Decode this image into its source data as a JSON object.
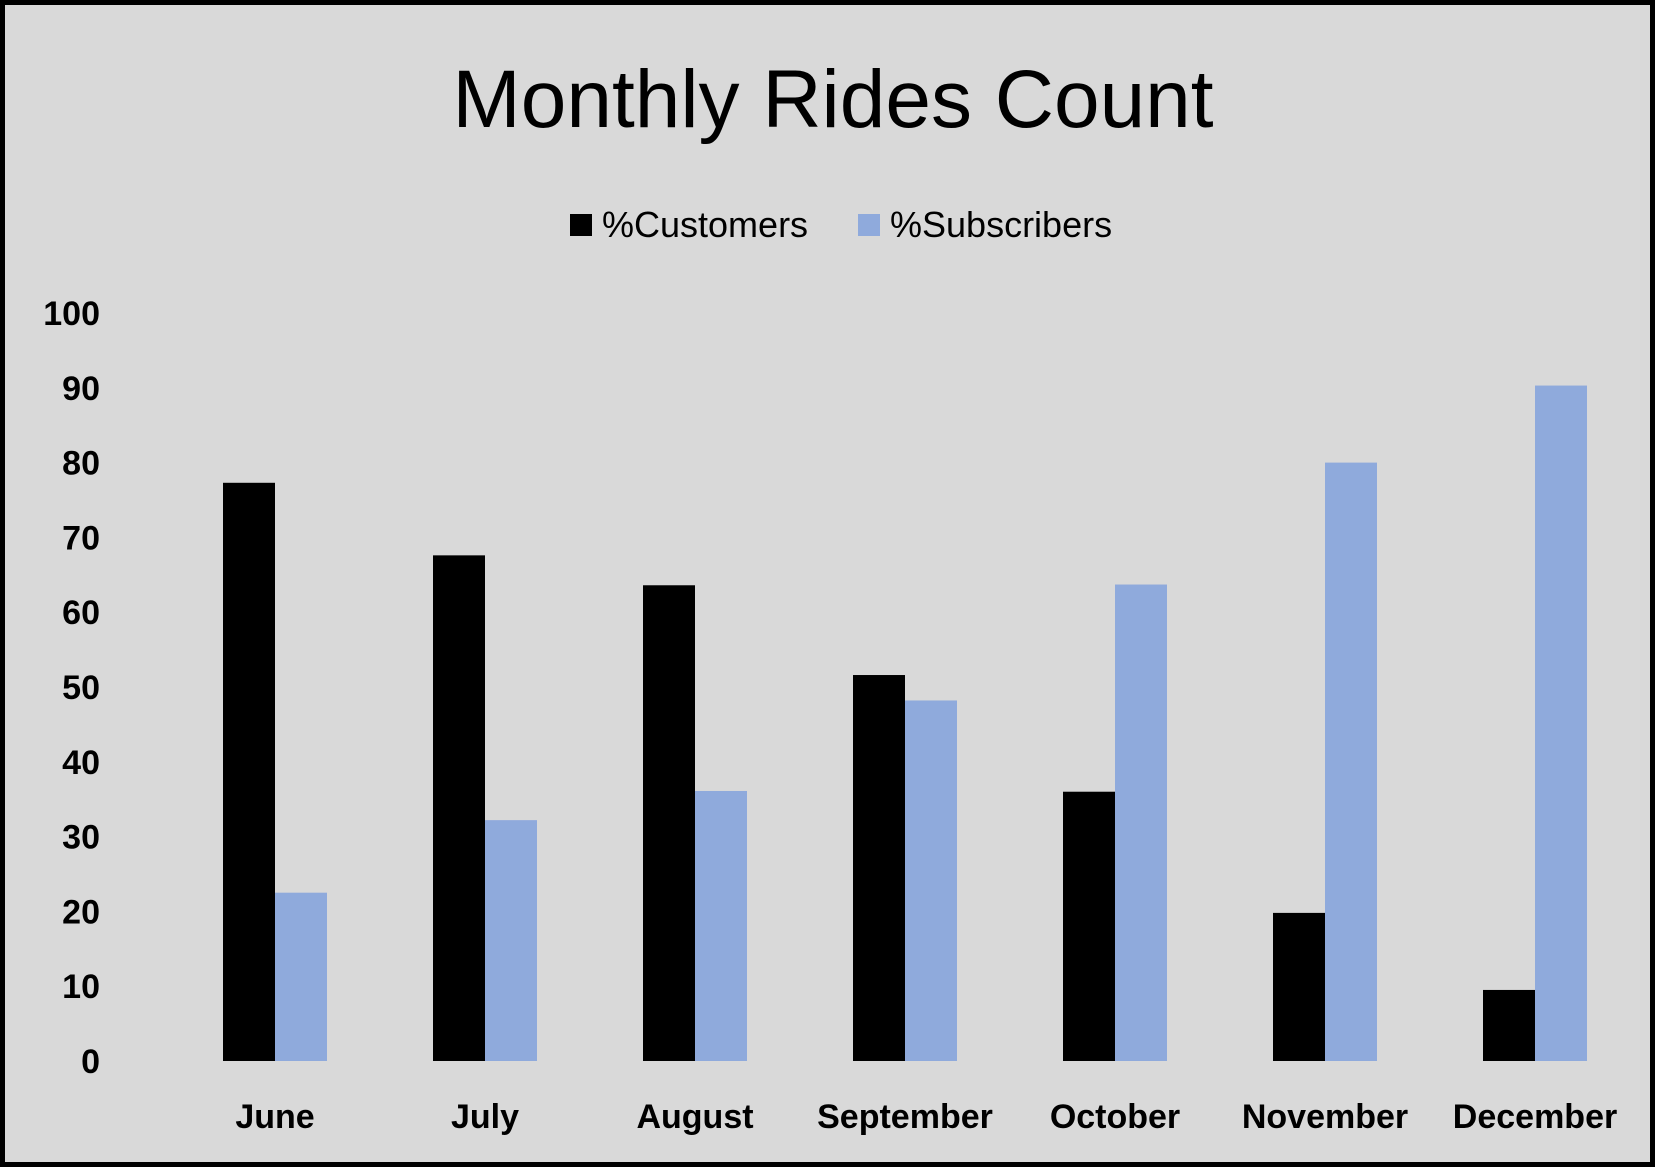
{
  "chart_data": {
    "type": "bar",
    "title": "Monthly Rides Count",
    "categories": [
      "June",
      "July",
      "August",
      "September",
      "October",
      "November",
      "December"
    ],
    "series": [
      {
        "name": "%Customers",
        "color": "#000000",
        "values": [
          77.3,
          67.6,
          63.6,
          51.6,
          36.0,
          19.8,
          9.5
        ]
      },
      {
        "name": "%Subscribers",
        "color": "#8faadc",
        "values": [
          22.5,
          32.2,
          36.1,
          48.2,
          63.7,
          80.0,
          90.3
        ]
      }
    ],
    "yticks": [
      0,
      10,
      20,
      30,
      40,
      50,
      60,
      70,
      80,
      90,
      100
    ],
    "ylim": [
      0,
      100
    ],
    "grid": false,
    "legend_position": "top"
  }
}
